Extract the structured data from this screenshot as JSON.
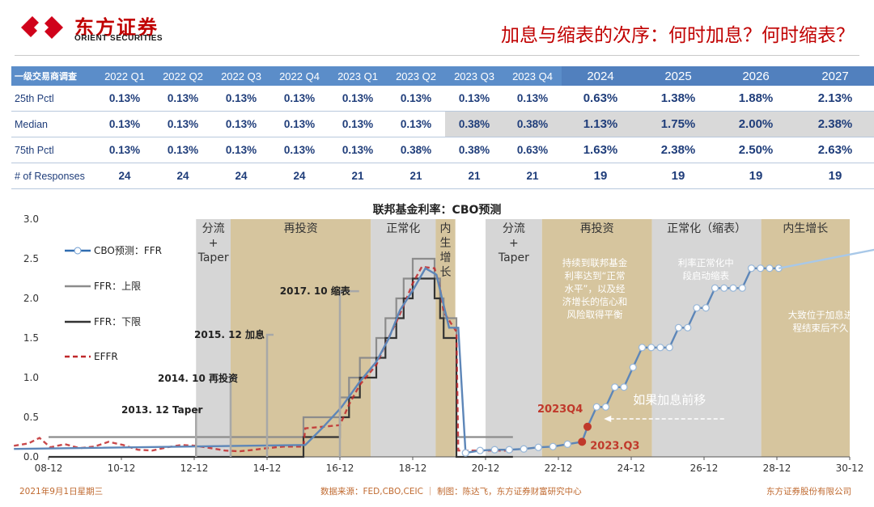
{
  "header": {
    "logo_cn": "东方证券",
    "logo_en": "ORIENT SECURITIES",
    "page_title": "加息与缩表的次序：何时加息？何时缩表？"
  },
  "table": {
    "corner": "一级交易商调查",
    "columns": [
      "2022 Q1",
      "2022 Q2",
      "2022 Q3",
      "2022 Q4",
      "2023 Q1",
      "2023 Q2",
      "2023 Q3",
      "2023 Q4",
      "2024",
      "2025",
      "2026",
      "2027"
    ],
    "rows": [
      {
        "label": "25th Pctl",
        "values": [
          "0.13%",
          "0.13%",
          "0.13%",
          "0.13%",
          "0.13%",
          "0.13%",
          "0.13%",
          "0.13%",
          "0.63%",
          "1.38%",
          "1.88%",
          "2.13%"
        ]
      },
      {
        "label": "Median",
        "values": [
          "0.13%",
          "0.13%",
          "0.13%",
          "0.13%",
          "0.13%",
          "0.13%",
          "0.38%",
          "0.38%",
          "1.13%",
          "1.75%",
          "2.00%",
          "2.38%"
        ]
      },
      {
        "label": "75th Pctl",
        "values": [
          "0.13%",
          "0.13%",
          "0.13%",
          "0.13%",
          "0.13%",
          "0.38%",
          "0.38%",
          "0.63%",
          "1.63%",
          "2.38%",
          "2.50%",
          "2.63%"
        ]
      },
      {
        "label": "# of Responses",
        "values": [
          "24",
          "24",
          "24",
          "24",
          "21",
          "21",
          "21",
          "21",
          "19",
          "19",
          "19",
          "19"
        ]
      }
    ]
  },
  "chart_data": {
    "type": "line",
    "title": "联邦基金利率：CBO预测",
    "x_tick_labels": [
      "08-12",
      "10-12",
      "12-12",
      "14-12",
      "16-12",
      "18-12",
      "20-12",
      "22-12",
      "24-12",
      "26-12",
      "28-12",
      "30-12"
    ],
    "ylim": [
      0,
      3.0
    ],
    "y_tick_labels": [
      "0.0",
      "0.5",
      "1.0",
      "1.5",
      "2.0",
      "2.5",
      "3.0"
    ],
    "legend": [
      "CBO预测：FFR",
      "FFR：上限",
      "FFR：下限",
      "EFFR"
    ],
    "colors": {
      "cbo": "#2f6cb0",
      "upper": "#8c8c8c",
      "lower": "#333333",
      "effr": "#c0292b",
      "tan": "#c8b27e",
      "grey": "#cfcfcf"
    },
    "series": [
      {
        "name": "FFR：上限",
        "points": [
          [
            2008.95,
            0.25
          ],
          [
            2015.95,
            0.25
          ],
          [
            2015.95,
            0.5
          ],
          [
            2016.95,
            0.5
          ],
          [
            2016.95,
            0.75
          ],
          [
            2017.2,
            0.75
          ],
          [
            2017.2,
            1.0
          ],
          [
            2017.5,
            1.0
          ],
          [
            2017.5,
            1.25
          ],
          [
            2017.95,
            1.25
          ],
          [
            2017.95,
            1.5
          ],
          [
            2018.2,
            1.5
          ],
          [
            2018.2,
            1.75
          ],
          [
            2018.5,
            1.75
          ],
          [
            2018.5,
            2.0
          ],
          [
            2018.7,
            2.0
          ],
          [
            2018.7,
            2.25
          ],
          [
            2018.95,
            2.25
          ],
          [
            2018.95,
            2.5
          ],
          [
            2019.55,
            2.5
          ],
          [
            2019.55,
            2.25
          ],
          [
            2019.7,
            2.25
          ],
          [
            2019.7,
            2.0
          ],
          [
            2019.8,
            2.0
          ],
          [
            2019.8,
            1.75
          ],
          [
            2020.15,
            1.75
          ],
          [
            2020.15,
            0.25
          ],
          [
            2021.7,
            0.25
          ]
        ]
      },
      {
        "name": "FFR：下限",
        "points": [
          [
            2008.95,
            0.0
          ],
          [
            2015.95,
            0.0
          ],
          [
            2015.95,
            0.25
          ],
          [
            2016.95,
            0.25
          ],
          [
            2016.95,
            0.5
          ],
          [
            2017.2,
            0.5
          ],
          [
            2017.2,
            0.75
          ],
          [
            2017.5,
            0.75
          ],
          [
            2017.5,
            1.0
          ],
          [
            2017.95,
            1.0
          ],
          [
            2017.95,
            1.25
          ],
          [
            2018.2,
            1.25
          ],
          [
            2018.2,
            1.5
          ],
          [
            2018.5,
            1.5
          ],
          [
            2018.5,
            1.75
          ],
          [
            2018.7,
            1.75
          ],
          [
            2018.7,
            2.0
          ],
          [
            2018.95,
            2.0
          ],
          [
            2018.95,
            2.25
          ],
          [
            2019.55,
            2.25
          ],
          [
            2019.55,
            2.0
          ],
          [
            2019.7,
            2.0
          ],
          [
            2019.7,
            1.75
          ],
          [
            2019.8,
            1.75
          ],
          [
            2019.8,
            1.5
          ],
          [
            2020.15,
            1.5
          ],
          [
            2020.15,
            0.0
          ],
          [
            2021.7,
            0.0
          ]
        ]
      },
      {
        "name": "EFFR",
        "points": [
          [
            2008.0,
            0.14
          ],
          [
            2008.4,
            0.17
          ],
          [
            2008.7,
            0.24
          ],
          [
            2009.0,
            0.12
          ],
          [
            2009.4,
            0.16
          ],
          [
            2009.8,
            0.11
          ],
          [
            2010.2,
            0.13
          ],
          [
            2010.6,
            0.19
          ],
          [
            2011.0,
            0.15
          ],
          [
            2011.4,
            0.09
          ],
          [
            2011.8,
            0.08
          ],
          [
            2012.2,
            0.12
          ],
          [
            2012.6,
            0.15
          ],
          [
            2013.0,
            0.14
          ],
          [
            2013.4,
            0.11
          ],
          [
            2013.8,
            0.08
          ],
          [
            2014.2,
            0.07
          ],
          [
            2014.6,
            0.09
          ],
          [
            2014.95,
            0.11
          ],
          [
            2015.4,
            0.13
          ],
          [
            2015.95,
            0.13
          ],
          [
            2016.0,
            0.36
          ],
          [
            2016.95,
            0.4
          ],
          [
            2017.2,
            0.66
          ],
          [
            2017.5,
            0.91
          ],
          [
            2017.95,
            1.16
          ],
          [
            2018.2,
            1.42
          ],
          [
            2018.5,
            1.7
          ],
          [
            2018.7,
            1.91
          ],
          [
            2018.95,
            2.19
          ],
          [
            2019.2,
            2.4
          ],
          [
            2019.55,
            2.38
          ],
          [
            2019.7,
            2.13
          ],
          [
            2019.8,
            1.83
          ],
          [
            2020.15,
            1.58
          ],
          [
            2020.2,
            0.08
          ],
          [
            2021.0,
            0.08
          ],
          [
            2021.7,
            0.08
          ]
        ]
      },
      {
        "name": "CBO预测：FFR",
        "points": [
          [
            2008.0,
            0.1
          ],
          [
            2016.0,
            0.15
          ],
          [
            2016.5,
            0.38
          ],
          [
            2017.0,
            0.63
          ],
          [
            2017.5,
            0.95
          ],
          [
            2017.95,
            1.2
          ],
          [
            2018.3,
            1.5
          ],
          [
            2018.6,
            1.85
          ],
          [
            2018.95,
            2.1
          ],
          [
            2019.3,
            2.38
          ],
          [
            2019.6,
            2.3
          ],
          [
            2019.95,
            1.63
          ],
          [
            2020.2,
            1.63
          ],
          [
            2020.4,
            0.05
          ],
          [
            2020.8,
            0.08
          ],
          [
            2021.2,
            0.09
          ],
          [
            2021.6,
            0.09
          ],
          [
            2022.0,
            0.1
          ],
          [
            2022.4,
            0.12
          ],
          [
            2022.8,
            0.13
          ],
          [
            2023.2,
            0.16
          ],
          [
            2023.6,
            0.19
          ],
          [
            2023.75,
            0.38
          ],
          [
            2024.0,
            0.63
          ],
          [
            2024.25,
            0.63
          ],
          [
            2024.5,
            0.88
          ],
          [
            2024.75,
            0.88
          ],
          [
            2025.0,
            1.13
          ],
          [
            2025.25,
            1.38
          ],
          [
            2025.5,
            1.38
          ],
          [
            2025.75,
            1.38
          ],
          [
            2026.0,
            1.38
          ],
          [
            2026.25,
            1.63
          ],
          [
            2026.5,
            1.63
          ],
          [
            2026.75,
            1.88
          ],
          [
            2027.0,
            1.88
          ],
          [
            2027.25,
            2.13
          ],
          [
            2027.5,
            2.13
          ],
          [
            2027.75,
            2.13
          ],
          [
            2028.0,
            2.13
          ],
          [
            2028.25,
            2.38
          ],
          [
            2028.5,
            2.38
          ],
          [
            2028.75,
            2.38
          ],
          [
            2029.0,
            2.38
          ]
        ]
      },
      {
        "name": "CBO trend",
        "points": [
          [
            2029.0,
            2.38
          ],
          [
            2031.7,
            2.62
          ]
        ]
      }
    ],
    "regions": [
      {
        "label": "分流\n+\nTaper",
        "x0": 2013.0,
        "x1": 2013.95,
        "fill": "grey"
      },
      {
        "label": "再投资",
        "x0": 2013.95,
        "x1": 2017.8,
        "fill": "tan"
      },
      {
        "label": "正常化",
        "x0": 2017.8,
        "x1": 2019.58,
        "fill": "grey"
      },
      {
        "label": "内\n生\n增\n长",
        "x0": 2019.58,
        "x1": 2020.12,
        "fill": "tan"
      },
      {
        "label": "分流\n+\nTaper",
        "x0": 2020.95,
        "x1": 2022.5,
        "fill": "grey"
      },
      {
        "label": "再投资",
        "x0": 2022.5,
        "x1": 2025.52,
        "fill": "tan"
      },
      {
        "label": "正常化（缩表）",
        "x0": 2025.52,
        "x1": 2028.52,
        "fill": "grey"
      },
      {
        "label": "内生增长",
        "x0": 2028.52,
        "x1": 2031.7,
        "fill": "tan"
      }
    ],
    "annotations": [
      {
        "label": "2013. 12 Taper",
        "x": 2013.0
      },
      {
        "label": "2014. 10 再投资",
        "x": 2013.95
      },
      {
        "label": "2015. 12 加息",
        "x": 2014.95
      },
      {
        "label": "2017. 10 缩表",
        "x": 2016.95
      }
    ],
    "region_notes": [
      "持续到联邦基金\n利率达到“正常\n水平”，以及经\n济增长的信心和\n风险取得平衡",
      "利率正常化中\n段启动缩表",
      "大致位于加息进\n程结束后不久"
    ],
    "points": [
      {
        "label": "2023Q4",
        "x": 2023.75,
        "y": 0.38
      },
      {
        "label": "2023.Q3",
        "x": 2023.6,
        "y": 0.19
      }
    ],
    "arrow_label": "如果加息前移"
  },
  "footer": {
    "date": "2021年9月1日星期三",
    "source": "数据来源：FED,CBO,CEIC ｜ 制图：陈达飞，东方证券财富研究中心",
    "company": "东方证券股份有限公司"
  }
}
